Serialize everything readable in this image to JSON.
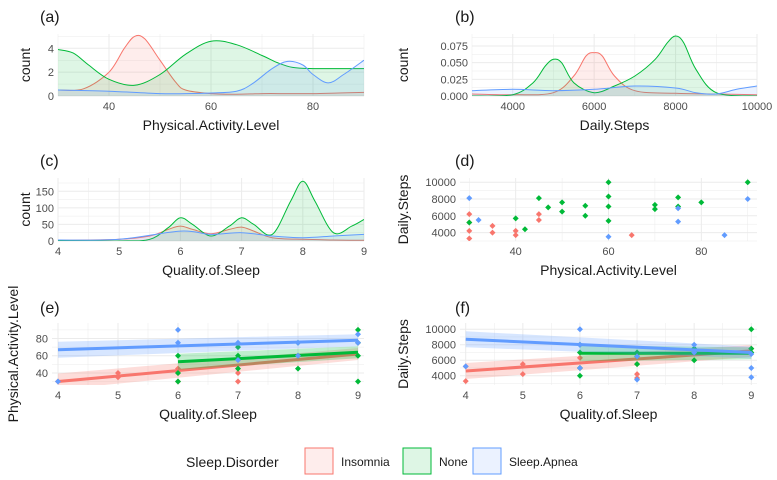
{
  "colors": {
    "Insomnia": "#F8766D",
    "None": "#00BA38",
    "Sleep.Apnea": "#619CFF",
    "grid": "#EBEBEB",
    "axis_text": "#4D4D4D",
    "label_text": "#1A1A1A"
  },
  "legend": {
    "title": "Sleep.Disorder",
    "entries": [
      "Insomnia",
      "None",
      "Sleep.Apnea"
    ],
    "placement": "bottom"
  },
  "chart_data": [
    {
      "panel": "(a)",
      "type": "area",
      "xlabel": "Physical.Activity.Level",
      "ylabel": "count",
      "xlim": [
        30,
        90
      ],
      "ylim": [
        0,
        5.2
      ],
      "xticks": [
        40,
        60,
        80
      ],
      "yticks": [
        0,
        2,
        4
      ],
      "ytick_labels": [
        "0",
        "2",
        "4"
      ],
      "series": [
        {
          "name": "Insomnia",
          "x": [
            30,
            35,
            40,
            43,
            45,
            47,
            50,
            53,
            55,
            60,
            65,
            70,
            75,
            80,
            85,
            90
          ],
          "y": [
            0.5,
            0.6,
            2.0,
            4.0,
            5.0,
            4.8,
            3.0,
            1.2,
            0.5,
            0.2,
            0.15,
            0.2,
            0.2,
            0.2,
            0.25,
            0.3
          ]
        },
        {
          "name": "None",
          "x": [
            30,
            33,
            36,
            40,
            45,
            50,
            55,
            60,
            65,
            70,
            73,
            76,
            80,
            85,
            90
          ],
          "y": [
            3.9,
            3.6,
            2.6,
            1.4,
            0.9,
            1.8,
            3.5,
            4.6,
            4.3,
            3.4,
            2.8,
            2.4,
            2.3,
            2.3,
            2.3
          ]
        },
        {
          "name": "Sleep.Apnea",
          "x": [
            30,
            40,
            50,
            55,
            60,
            65,
            68,
            72,
            75,
            78,
            80,
            83,
            86,
            90
          ],
          "y": [
            0.5,
            0.4,
            0.2,
            0.2,
            0.25,
            0.4,
            1.0,
            2.3,
            2.9,
            2.6,
            1.8,
            1.1,
            1.8,
            3.0
          ]
        }
      ]
    },
    {
      "panel": "(b)",
      "type": "area",
      "xlabel": "Daily.Steps",
      "ylabel": "count",
      "xlim": [
        3000,
        10000
      ],
      "ylim": [
        0,
        0.093
      ],
      "xticks": [
        4000,
        6000,
        8000,
        10000
      ],
      "yticks": [
        0,
        0.025,
        0.05,
        0.075
      ],
      "ytick_labels": [
        "0.000",
        "0.025",
        "0.050",
        "0.075"
      ],
      "series": [
        {
          "name": "Insomnia",
          "x": [
            3000,
            4000,
            5000,
            5500,
            5800,
            6000,
            6200,
            6500,
            7000,
            8000,
            9000,
            10000
          ],
          "y": [
            0.003,
            0.002,
            0.005,
            0.03,
            0.06,
            0.065,
            0.06,
            0.03,
            0.008,
            0.004,
            0.003,
            0.002
          ]
        },
        {
          "name": "None",
          "x": [
            3000,
            4000,
            4500,
            4800,
            5000,
            5200,
            5500,
            6000,
            6500,
            7000,
            7500,
            7800,
            8000,
            8200,
            8500,
            9000,
            10000
          ],
          "y": [
            0.0,
            0.002,
            0.02,
            0.045,
            0.055,
            0.05,
            0.02,
            0.005,
            0.015,
            0.03,
            0.055,
            0.08,
            0.09,
            0.08,
            0.04,
            0.005,
            0.0
          ]
        },
        {
          "name": "Sleep.Apnea",
          "x": [
            3000,
            4000,
            5000,
            6000,
            7000,
            8000,
            8500,
            9000,
            9500,
            10000
          ],
          "y": [
            0.008,
            0.01,
            0.008,
            0.01,
            0.015,
            0.012,
            0.005,
            0.003,
            0.01,
            0.015
          ]
        }
      ]
    },
    {
      "panel": "(c)",
      "type": "area",
      "xlabel": "Quality.of.Sleep",
      "ylabel": "count",
      "xlim": [
        4,
        9
      ],
      "ylim": [
        0,
        190
      ],
      "xticks": [
        4,
        5,
        6,
        7,
        8,
        9
      ],
      "yticks": [
        0,
        50,
        100,
        150
      ],
      "ytick_labels": [
        "0",
        "50",
        "100",
        "150"
      ],
      "series": [
        {
          "name": "Insomnia",
          "x": [
            4,
            4.5,
            5,
            5.5,
            5.8,
            6,
            6.2,
            6.5,
            6.8,
            7,
            7.2,
            7.5,
            8,
            8.5,
            9
          ],
          "y": [
            2,
            3,
            5,
            15,
            35,
            45,
            35,
            22,
            35,
            42,
            30,
            10,
            5,
            3,
            2
          ]
        },
        {
          "name": "None",
          "x": [
            4,
            5,
            5.5,
            5.8,
            6,
            6.2,
            6.5,
            6.8,
            7,
            7.2,
            7.5,
            7.8,
            8,
            8.2,
            8.5,
            8.8,
            9
          ],
          "y": [
            0,
            0,
            5,
            40,
            70,
            50,
            15,
            45,
            70,
            50,
            20,
            120,
            180,
            120,
            25,
            45,
            65
          ]
        },
        {
          "name": "Sleep.Apnea",
          "x": [
            4,
            5,
            6,
            6.5,
            7,
            7.5,
            8,
            8.5,
            9
          ],
          "y": [
            3,
            5,
            30,
            20,
            25,
            15,
            10,
            15,
            20
          ]
        }
      ]
    },
    {
      "panel": "(d)",
      "type": "scatter",
      "xlabel": "Physical.Activity.Level",
      "ylabel": "Daily.Steps",
      "xlim": [
        28,
        92
      ],
      "ylim": [
        3000,
        10500
      ],
      "xticks": [
        40,
        60,
        80
      ],
      "yticks": [
        4000,
        6000,
        8000,
        10000
      ],
      "ytick_labels": [
        "4000",
        "6000",
        "8000",
        "10000"
      ],
      "series": [
        {
          "name": "Insomnia",
          "points": [
            [
              30,
              3300
            ],
            [
              30,
              4200
            ],
            [
              30,
              5200
            ],
            [
              30,
              6200
            ],
            [
              35,
              4000
            ],
            [
              35,
              4800
            ],
            [
              40,
              3700
            ],
            [
              40,
              4200
            ],
            [
              45,
              5500
            ],
            [
              45,
              6200
            ],
            [
              65,
              3700
            ]
          ]
        },
        {
          "name": "None",
          "points": [
            [
              30,
              5200
            ],
            [
              40,
              5700
            ],
            [
              42,
              4400
            ],
            [
              45,
              8100
            ],
            [
              47,
              7000
            ],
            [
              50,
              7600
            ],
            [
              50,
              6500
            ],
            [
              55,
              7200
            ],
            [
              55,
              6000
            ],
            [
              60,
              10000
            ],
            [
              60,
              8300
            ],
            [
              60,
              7100
            ],
            [
              60,
              5400
            ],
            [
              70,
              7300
            ],
            [
              70,
              6800
            ],
            [
              75,
              8200
            ],
            [
              75,
              7100
            ],
            [
              80,
              7600
            ],
            [
              90,
              10000
            ]
          ]
        },
        {
          "name": "Sleep.Apnea",
          "points": [
            [
              30,
              8100
            ],
            [
              32,
              5500
            ],
            [
              60,
              3500
            ],
            [
              75,
              6900
            ],
            [
              75,
              5300
            ],
            [
              85,
              3700
            ],
            [
              90,
              8000
            ]
          ]
        }
      ]
    },
    {
      "panel": "(e)",
      "type": "scatter",
      "xlabel": "Quality.of.Sleep",
      "ylabel": "Physical.Activity.Level",
      "xlim": [
        3.9,
        9.1
      ],
      "ylim": [
        26,
        98
      ],
      "xticks": [
        4,
        5,
        6,
        7,
        8,
        9
      ],
      "yticks": [
        40,
        60,
        80
      ],
      "ytick_labels": [
        "40",
        "60",
        "80"
      ],
      "series": [
        {
          "name": "Insomnia",
          "points": [
            [
              4,
              30
            ],
            [
              5,
              35
            ],
            [
              5,
              40
            ],
            [
              6,
              30
            ],
            [
              6,
              40
            ],
            [
              6,
              45
            ],
            [
              7,
              30
            ],
            [
              7,
              40
            ],
            [
              7,
              55
            ],
            [
              8,
              60
            ],
            [
              9,
              75
            ]
          ],
          "fit": [
            [
              4,
              30
            ],
            [
              9,
              62
            ]
          ]
        },
        {
          "name": "None",
          "points": [
            [
              6,
              30
            ],
            [
              6,
              40
            ],
            [
              6,
              60
            ],
            [
              7,
              45
            ],
            [
              7,
              60
            ],
            [
              7,
              70
            ],
            [
              8,
              45
            ],
            [
              8,
              60
            ],
            [
              8,
              75
            ],
            [
              9,
              30
            ],
            [
              9,
              60
            ],
            [
              9,
              75
            ],
            [
              9,
              90
            ]
          ],
          "fit": [
            [
              6,
              53
            ],
            [
              9,
              64
            ]
          ]
        },
        {
          "name": "Sleep.Apnea",
          "points": [
            [
              4,
              30
            ],
            [
              6,
              90
            ],
            [
              6,
              75
            ],
            [
              7,
              55
            ],
            [
              7,
              75
            ],
            [
              8,
              75
            ],
            [
              8,
              60
            ],
            [
              9,
              85
            ],
            [
              9,
              75
            ]
          ],
          "fit": [
            [
              4,
              67
            ],
            [
              9,
              78
            ]
          ]
        }
      ]
    },
    {
      "panel": "(f)",
      "type": "scatter",
      "xlabel": "Quality.of.Sleep",
      "ylabel": "Daily.Steps",
      "xlim": [
        3.9,
        9.1
      ],
      "ylim": [
        2800,
        10800
      ],
      "xticks": [
        4,
        5,
        6,
        7,
        8,
        9
      ],
      "yticks": [
        4000,
        6000,
        8000,
        10000
      ],
      "ytick_labels": [
        "4000",
        "6000",
        "8000",
        "10000"
      ],
      "series": [
        {
          "name": "Insomnia",
          "points": [
            [
              4,
              3300
            ],
            [
              4,
              5200
            ],
            [
              5,
              4200
            ],
            [
              5,
              5500
            ],
            [
              6,
              5000
            ],
            [
              6,
              6300
            ],
            [
              7,
              3700
            ],
            [
              7,
              4200
            ],
            [
              7,
              5500
            ],
            [
              8,
              7000
            ],
            [
              9,
              7500
            ]
          ],
          "fit": [
            [
              4,
              4600
            ],
            [
              9,
              7200
            ]
          ]
        },
        {
          "name": "None",
          "points": [
            [
              6,
              4000
            ],
            [
              6,
              5000
            ],
            [
              6,
              7000
            ],
            [
              6,
              8000
            ],
            [
              7,
              5500
            ],
            [
              7,
              6500
            ],
            [
              7,
              7000
            ],
            [
              8,
              6000
            ],
            [
              8,
              7000
            ],
            [
              8,
              7500
            ],
            [
              9,
              10000
            ],
            [
              9,
              7500
            ],
            [
              9,
              7000
            ]
          ],
          "fit": [
            [
              6,
              6900
            ],
            [
              9,
              6900
            ]
          ]
        },
        {
          "name": "Sleep.Apnea",
          "points": [
            [
              4,
              5200
            ],
            [
              6,
              10000
            ],
            [
              6,
              8000
            ],
            [
              6,
              5000
            ],
            [
              7,
              3500
            ],
            [
              7,
              6500
            ],
            [
              8,
              8000
            ],
            [
              8,
              7000
            ],
            [
              9,
              3800
            ],
            [
              9,
              5000
            ],
            [
              9,
              6800
            ]
          ],
          "fit": [
            [
              4,
              8700
            ],
            [
              9,
              7000
            ]
          ]
        }
      ]
    }
  ]
}
